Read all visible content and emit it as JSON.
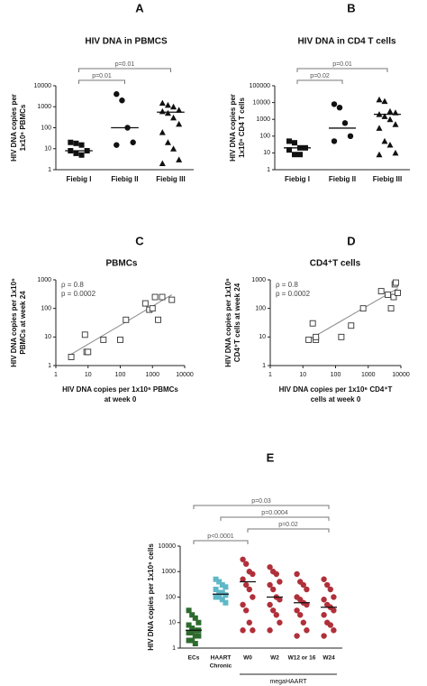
{
  "chart_data": [
    {
      "type": "strip",
      "panel_label": "A",
      "title": "HIV DNA in PBMCS",
      "ylabel": [
        "HIV DNA copies per",
        "1x10⁶ PBMCs"
      ],
      "categories": [
        "Fiebig I",
        "Fiebig II",
        "Fiebig III"
      ],
      "markers": [
        "square",
        "circle",
        "triangle"
      ],
      "colors": [
        "#111111",
        "#111111",
        "#111111"
      ],
      "points": [
        [
          20,
          18,
          15,
          8,
          8,
          6,
          5
        ],
        [
          4000,
          2000,
          100,
          20,
          15
        ],
        [
          1500,
          1200,
          1000,
          700,
          600,
          500,
          300,
          150,
          60,
          20,
          10,
          3,
          2
        ]
      ],
      "medians": [
        8,
        100,
        550
      ],
      "log_y": true,
      "ylim": [
        1,
        10000
      ],
      "yticks": [
        1,
        10,
        100,
        1000,
        10000
      ],
      "brackets": [
        {
          "from": "Fiebig I",
          "to": "Fiebig III",
          "label": "p=0.01"
        },
        {
          "from": "Fiebig I",
          "to": "Fiebig II",
          "label": "p=0.01"
        }
      ]
    },
    {
      "type": "strip",
      "panel_label": "B",
      "title": "HIV DNA in CD4 T cells",
      "ylabel": [
        "HIV DNA copies per",
        "1x10⁶ CD4 T cells"
      ],
      "categories": [
        "Fiebig I",
        "Fiebig II",
        "Fiebig III"
      ],
      "markers": [
        "square",
        "circle",
        "triangle"
      ],
      "colors": [
        "#111111",
        "#111111",
        "#111111"
      ],
      "points": [
        [
          50,
          40,
          20,
          20,
          15,
          8,
          8
        ],
        [
          8000,
          5000,
          600,
          100,
          50
        ],
        [
          15000,
          12000,
          3000,
          2500,
          2000,
          1500,
          1000,
          500,
          300,
          50,
          30,
          10,
          8
        ]
      ],
      "medians": [
        20,
        300,
        2000
      ],
      "log_y": true,
      "ylim": [
        1,
        100000
      ],
      "yticks": [
        1,
        10,
        100,
        1000,
        10000,
        100000
      ],
      "brackets": [
        {
          "from": "Fiebig I",
          "to": "Fiebig III",
          "label": "p=0.01"
        },
        {
          "from": "Fiebig I",
          "to": "Fiebig II",
          "label": "p=0.02"
        }
      ]
    },
    {
      "type": "scatter",
      "panel_label": "C",
      "title": "PBMCs",
      "ylabel": [
        "HIV DNA copies per 1x10⁶",
        "PBMCs at week 24"
      ],
      "xlabel": [
        "HIV DNA copies per 1x10⁶ PBMCs",
        "at week 0"
      ],
      "annotations": [
        "ρ = 0.8",
        "p = 0.0002"
      ],
      "marker": "open-square",
      "color": "#333333",
      "x": [
        3,
        8,
        9,
        10,
        30,
        100,
        150,
        600,
        800,
        1000,
        1200,
        1500,
        2000,
        4000
      ],
      "y": [
        2,
        12,
        3,
        3,
        8,
        8,
        40,
        150,
        90,
        100,
        250,
        40,
        250,
        200
      ],
      "fit": {
        "x": [
          3,
          4000
        ],
        "y": [
          2.5,
          300
        ]
      },
      "log_x": true,
      "log_y": true,
      "xlim": [
        1,
        10000
      ],
      "xticks": [
        1,
        10,
        100,
        1000,
        10000
      ],
      "ylim": [
        1,
        1000
      ],
      "yticks": [
        1,
        10,
        100,
        1000
      ]
    },
    {
      "type": "scatter",
      "panel_label": "D",
      "title": "CD4⁺T cells",
      "ylabel": [
        "HIV DNA copies per 1x10⁶",
        "CD4⁺T cells at week 24"
      ],
      "xlabel": [
        "HIV DNA copies per 1x10⁶ CD4⁺T",
        "cells at week 0"
      ],
      "annotations": [
        "ρ = 0.8",
        "p = 0.0002"
      ],
      "marker": "open-square",
      "color": "#333333",
      "x": [
        15,
        20,
        25,
        25,
        150,
        300,
        700,
        2500,
        4000,
        5000,
        6000,
        6500,
        7000,
        8000
      ],
      "y": [
        8,
        30,
        8,
        10,
        10,
        25,
        100,
        400,
        300,
        100,
        250,
        700,
        800,
        350
      ],
      "fit": {
        "x": [
          15,
          8000
        ],
        "y": [
          8,
          500
        ]
      },
      "log_x": true,
      "log_y": true,
      "xlim": [
        1,
        10000
      ],
      "xticks": [
        1,
        10,
        100,
        1000,
        10000
      ],
      "ylim": [
        1,
        1000
      ],
      "yticks": [
        1,
        10,
        100,
        1000
      ]
    },
    {
      "type": "strip",
      "panel_label": "E",
      "ylabel": [
        "HIV DNA copies per 1x10⁶ cells"
      ],
      "categories": [
        "ECs",
        [
          "HAART",
          "Chronic"
        ],
        "W0",
        "W2",
        "W12 or 16",
        "W24"
      ],
      "markers": [
        "square",
        "square",
        "circle",
        "circle",
        "circle",
        "circle"
      ],
      "colors": [
        "#2e6b2e",
        "#5fb8c8",
        "#b0303a",
        "#b0303a",
        "#b0303a",
        "#b0303a"
      ],
      "points": [
        [
          30,
          20,
          15,
          10,
          8,
          6,
          5,
          5,
          4,
          4,
          3,
          3,
          2,
          2,
          1.5
        ],
        [
          500,
          400,
          300,
          250,
          200,
          150,
          150,
          120,
          100,
          100,
          80,
          60
        ],
        [
          3000,
          2000,
          1000,
          800,
          500,
          300,
          200,
          100,
          50,
          30,
          10,
          5,
          5
        ],
        [
          1500,
          1000,
          800,
          400,
          300,
          200,
          100,
          80,
          50,
          30,
          20,
          10,
          5
        ],
        [
          800,
          400,
          300,
          200,
          100,
          80,
          60,
          50,
          30,
          20,
          10,
          5,
          3
        ],
        [
          500,
          300,
          200,
          100,
          80,
          50,
          40,
          30,
          20,
          10,
          8,
          5,
          3
        ]
      ],
      "medians": [
        5,
        130,
        400,
        100,
        60,
        40
      ],
      "log_y": true,
      "ylim": [
        1,
        10000
      ],
      "yticks": [
        1,
        10,
        100,
        1000,
        10000
      ],
      "brackets": [
        {
          "from": "ECs",
          "to": "W24",
          "label": "p=0.03"
        },
        {
          "from": "HAART Chronic",
          "to": "W24",
          "label": "p=0.0004"
        },
        {
          "from": "W0",
          "to": "W24",
          "label": "p=0.02"
        },
        {
          "from": "ECs",
          "to": "W0",
          "label": "p<0.0001"
        }
      ],
      "group": {
        "label": "megaHAART",
        "from": "W0",
        "to": "W24"
      }
    }
  ]
}
